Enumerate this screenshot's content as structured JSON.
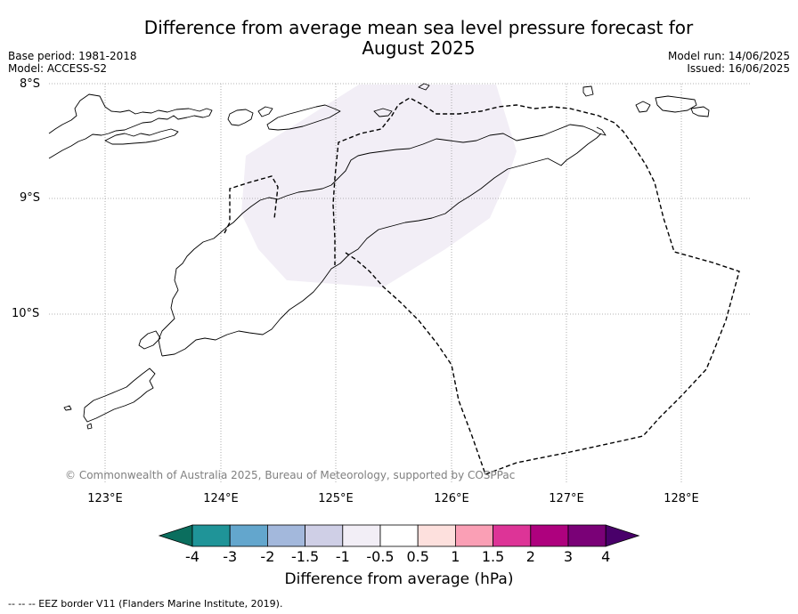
{
  "title_line1": "Difference from average mean sea level pressure forecast for",
  "title_line2": "August 2025",
  "base_period": "Base period: 1981-2018",
  "model": "Model: ACCESS-S2",
  "model_run": "Model run: 14/06/2025",
  "issued": "Issued: 16/06/2025",
  "latitude_labels": [
    "8°S",
    "9°S",
    "10°S"
  ],
  "longitude_labels": [
    "123°E",
    "124°E",
    "125°E",
    "126°E",
    "127°E",
    "128°E"
  ],
  "copyright": "© Commonwealth of Australia 2025, Bureau of Meteorology, supported by COSPPac",
  "colorbar": {
    "title": "Difference from average (hPa)",
    "tick_labels": [
      "-4",
      "-3",
      "-2",
      "-1.5",
      "-1",
      "-0.5",
      "0.5",
      "1",
      "1.5",
      "2",
      "3",
      "4"
    ],
    "colors": {
      "under": "#0b6e5e",
      "bins": [
        "#1f9498",
        "#63a6cd",
        "#a3b8dc",
        "#cfcfe6",
        "#f2eef6",
        "#ffffff",
        "#fde0dd",
        "#fa9fb5",
        "#dd3497",
        "#ae017e",
        "#7a0177"
      ],
      "over": "#49006a"
    }
  },
  "shaded_area_color": "#f2eef6",
  "footnote": "--  --  -- EEZ border V11 (Flanders Marine Institute, 2019)."
}
